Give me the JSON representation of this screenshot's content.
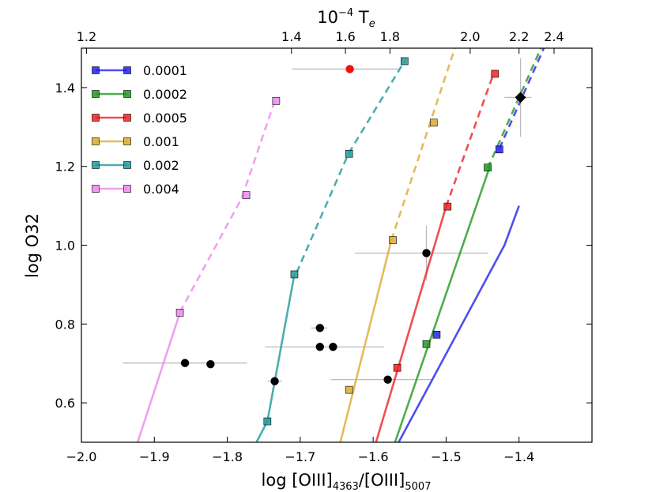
{
  "chart_data": {
    "type": "line",
    "xlabel": "log [OIII]4363/[OIII]5007",
    "xlabel_parts": {
      "main": "log [OIII]",
      "sub1": "4363",
      "sep": "/[OIII]",
      "sub2": "5007"
    },
    "ylabel": "log O32",
    "top_axis_label": "10−4 Te",
    "top_axis_parts": {
      "base": "10",
      "sup": "−4",
      "main": " T",
      "sub": "e"
    },
    "xlim": [
      -2.0,
      -1.3
    ],
    "ylim": [
      0.5,
      1.5
    ],
    "x_ticks": [
      -2.0,
      -1.9,
      -1.8,
      -1.7,
      -1.6,
      -1.5,
      -1.4
    ],
    "x_tick_labels": [
      "−2.0",
      "−1.9",
      "−1.8",
      "−1.7",
      "−1.6",
      "−1.5",
      "−1.4"
    ],
    "y_ticks": [
      0.6,
      0.8,
      1.0,
      1.2,
      1.4
    ],
    "y_tick_labels": [
      "0.6",
      "0.8",
      "1.0",
      "1.2",
      "1.4"
    ],
    "top_ticks": [
      {
        "x": -1.993,
        "label": "1.2"
      },
      {
        "x": -1.712,
        "label": "1.4"
      },
      {
        "x": -1.638,
        "label": "1.6"
      },
      {
        "x": -1.577,
        "label": "1.8"
      },
      {
        "x": -1.467,
        "label": "2.0"
      },
      {
        "x": -1.4,
        "label": "2.2"
      },
      {
        "x": -1.352,
        "label": "2.4"
      }
    ],
    "legend": {
      "position": "top-left"
    },
    "series": [
      {
        "name": "0.0001",
        "color": "#2222ee",
        "line": [
          [
            -1.565,
            0.5
          ],
          [
            -1.42,
            1.0
          ],
          [
            -1.4,
            1.1
          ]
        ],
        "dashed": [
          [
            -1.427,
            1.245
          ],
          [
            -1.366,
            1.5
          ]
        ],
        "markers": [
          [
            -1.513,
            0.773
          ],
          [
            -1.427,
            1.243
          ]
        ]
      },
      {
        "name": "0.0002",
        "color": "#229922",
        "line": [
          [
            -1.57,
            0.5
          ],
          [
            -1.44,
            1.2
          ]
        ],
        "dashed": [
          [
            -1.443,
            1.195
          ],
          [
            -1.37,
            1.5
          ]
        ],
        "markers": [
          [
            -1.527,
            0.749
          ],
          [
            -1.443,
            1.197
          ]
        ]
      },
      {
        "name": "0.0005",
        "color": "#ee2222",
        "line": [
          [
            -1.596,
            0.5
          ],
          [
            -1.5,
            1.098
          ]
        ],
        "dashed": [
          [
            -1.5,
            1.098
          ],
          [
            -1.435,
            1.435
          ]
        ],
        "markers": [
          [
            -1.567,
            0.689
          ],
          [
            -1.498,
            1.098
          ],
          [
            -1.433,
            1.435
          ]
        ]
      },
      {
        "name": "0.001",
        "color": "#ddaa33",
        "line": [
          [
            -1.645,
            0.5
          ],
          [
            -1.575,
            1.013
          ]
        ],
        "dashed": [
          [
            -1.575,
            1.013
          ],
          [
            -1.488,
            1.5
          ]
        ],
        "markers": [
          [
            -1.633,
            0.633
          ],
          [
            -1.573,
            1.013
          ],
          [
            -1.517,
            1.311
          ]
        ]
      },
      {
        "name": "0.002",
        "color": "#229999",
        "line": [
          [
            -1.76,
            0.5
          ],
          [
            -1.745,
            0.553
          ],
          [
            -1.708,
            0.926
          ]
        ],
        "dashed": [
          [
            -1.705,
            0.93
          ],
          [
            -1.634,
            1.232
          ],
          [
            -1.557,
            1.467
          ]
        ],
        "markers": [
          [
            -1.745,
            0.553
          ],
          [
            -1.708,
            0.926
          ],
          [
            -1.633,
            1.232
          ],
          [
            -1.557,
            1.467
          ]
        ]
      },
      {
        "name": "0.004",
        "color": "#ee88ee",
        "line": [
          [
            -1.923,
            0.5
          ],
          [
            -1.865,
            0.828
          ]
        ],
        "dashed": [
          [
            -1.865,
            0.83
          ],
          [
            -1.78,
            1.12
          ],
          [
            -1.735,
            1.366
          ]
        ],
        "markers": [
          [
            -1.865,
            0.829
          ],
          [
            -1.774,
            1.127
          ],
          [
            -1.733,
            1.366
          ]
        ]
      }
    ],
    "observations": [
      {
        "x": -1.858,
        "y": 0.701,
        "xerr": [
          0.085,
          0.085
        ],
        "yerr": 0,
        "color": "#000000",
        "shape": "circle"
      },
      {
        "x": -1.823,
        "y": 0.698,
        "xerr": [
          0,
          0
        ],
        "yerr": 0,
        "color": "#000000",
        "shape": "circle"
      },
      {
        "x": -1.735,
        "y": 0.655,
        "xerr": [
          0.01,
          0.01
        ],
        "yerr": 0,
        "color": "#000000",
        "shape": "circle"
      },
      {
        "x": -1.673,
        "y": 0.79,
        "xerr": [
          0.012,
          0.01
        ],
        "yerr": 0,
        "color": "#000000",
        "shape": "circle"
      },
      {
        "x": -1.673,
        "y": 0.742,
        "xerr": [
          0.075,
          0.088
        ],
        "yerr": 0,
        "color": "#000000",
        "shape": "circle"
      },
      {
        "x": -1.655,
        "y": 0.742,
        "xerr": [
          0,
          0
        ],
        "yerr": 0,
        "color": "#000000",
        "shape": "circle"
      },
      {
        "x": -1.58,
        "y": 0.659,
        "xerr": [
          0.078,
          0.06
        ],
        "yerr": 0,
        "color": "#000000",
        "shape": "circle"
      },
      {
        "x": -1.527,
        "y": 0.98,
        "xerr": [
          0.098,
          0.085
        ],
        "yerr": 0.07,
        "color": "#000000",
        "shape": "circle"
      },
      {
        "x": -1.632,
        "y": 1.447,
        "xerr": [
          0.079,
          0.068
        ],
        "yerr": 0,
        "color": "#ee1111",
        "shape": "circle"
      },
      {
        "x": -1.398,
        "y": 1.375,
        "xerr": [
          0.022,
          0.015
        ],
        "yerr": 0.1,
        "color": "#000000",
        "shape": "diamond"
      }
    ]
  }
}
